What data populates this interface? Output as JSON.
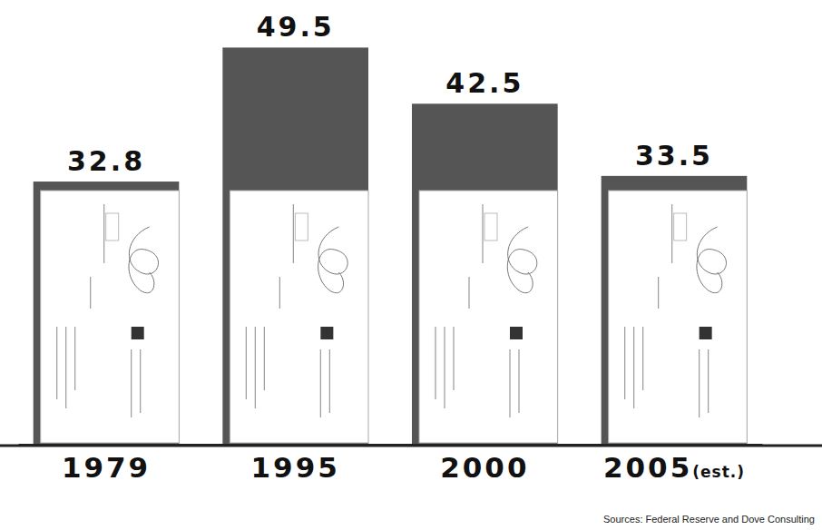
{
  "chart_data": {
    "type": "bar",
    "categories": [
      "1979",
      "1995",
      "2000",
      "2005(est.)"
    ],
    "values": [
      32.8,
      49.5,
      42.5,
      33.5
    ],
    "color": "#555555",
    "ylim": [
      0,
      50
    ],
    "yticks": [],
    "tick_labels": "x",
    "data_labels": true,
    "source": "Sources: Federal Reserve and Dove Consulting"
  }
}
